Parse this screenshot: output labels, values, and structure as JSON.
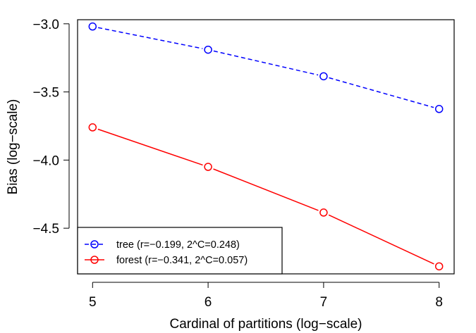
{
  "chart_data": {
    "type": "line",
    "xlabel": "Cardinal of partitions (log−scale)",
    "ylabel": "Bias (log−scale)",
    "x": [
      5,
      6,
      7,
      8
    ],
    "xlim": [
      4.87,
      8.13
    ],
    "ylim": [
      -4.835,
      -2.97
    ],
    "xticks": [
      5,
      6,
      7,
      8
    ],
    "xtick_labels": [
      "5",
      "6",
      "7",
      "8"
    ],
    "yticks": [
      -3.0,
      -3.5,
      -4.0,
      -4.5
    ],
    "ytick_labels": [
      "−3.0",
      "−3.5",
      "−4.0",
      "−4.5"
    ],
    "grid": false,
    "legend_position": "bottom-left",
    "series": [
      {
        "name": "tree (r=−0.199, 2^C=0.248)",
        "values": [
          -3.02,
          -3.19,
          -3.385,
          -3.625
        ],
        "color": "#0000ff",
        "line_style": "dashed",
        "marker": "open-circle"
      },
      {
        "name": "forest (r=−0.341, 2^C=0.057)",
        "values": [
          -3.76,
          -4.05,
          -4.385,
          -4.78
        ],
        "color": "#ff0000",
        "line_style": "solid",
        "marker": "open-circle"
      }
    ]
  }
}
